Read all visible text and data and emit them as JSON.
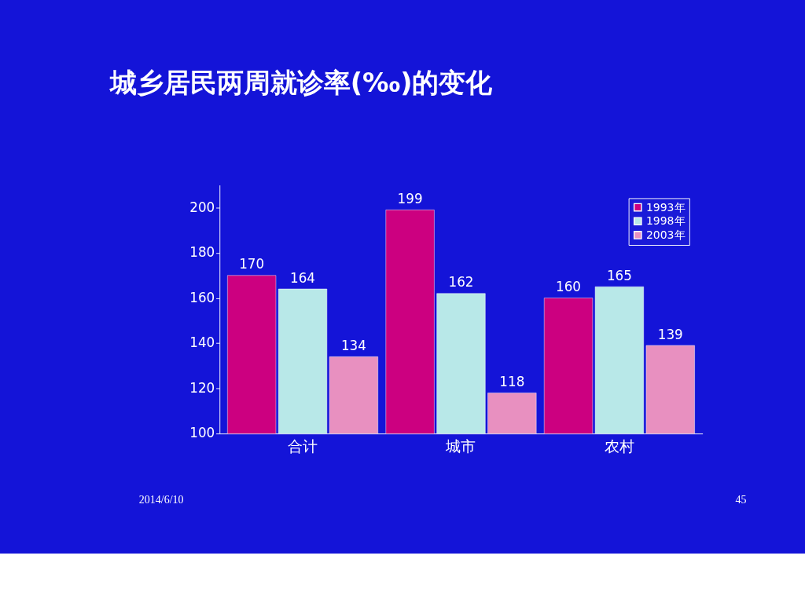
{
  "chart_data": {
    "type": "bar",
    "title": "城乡居民两周就诊率(‰)的变化",
    "categories": [
      "合计",
      "城市",
      "农村"
    ],
    "series": [
      {
        "name": "1993年",
        "color": "#cc0080",
        "values": [
          170,
          199,
          160
        ]
      },
      {
        "name": "1998年",
        "color": "#b8e8e8",
        "values": [
          164,
          162,
          165
        ]
      },
      {
        "name": "2003年",
        "color": "#e890c0",
        "values": [
          134,
          118,
          139
        ]
      }
    ],
    "ylim": [
      100,
      210
    ],
    "yticks": [
      100,
      120,
      140,
      160,
      180,
      200
    ],
    "data_labels": true,
    "grid": false,
    "legend": "top right",
    "annotations": [
      "2014/6/10",
      "45"
    ]
  }
}
